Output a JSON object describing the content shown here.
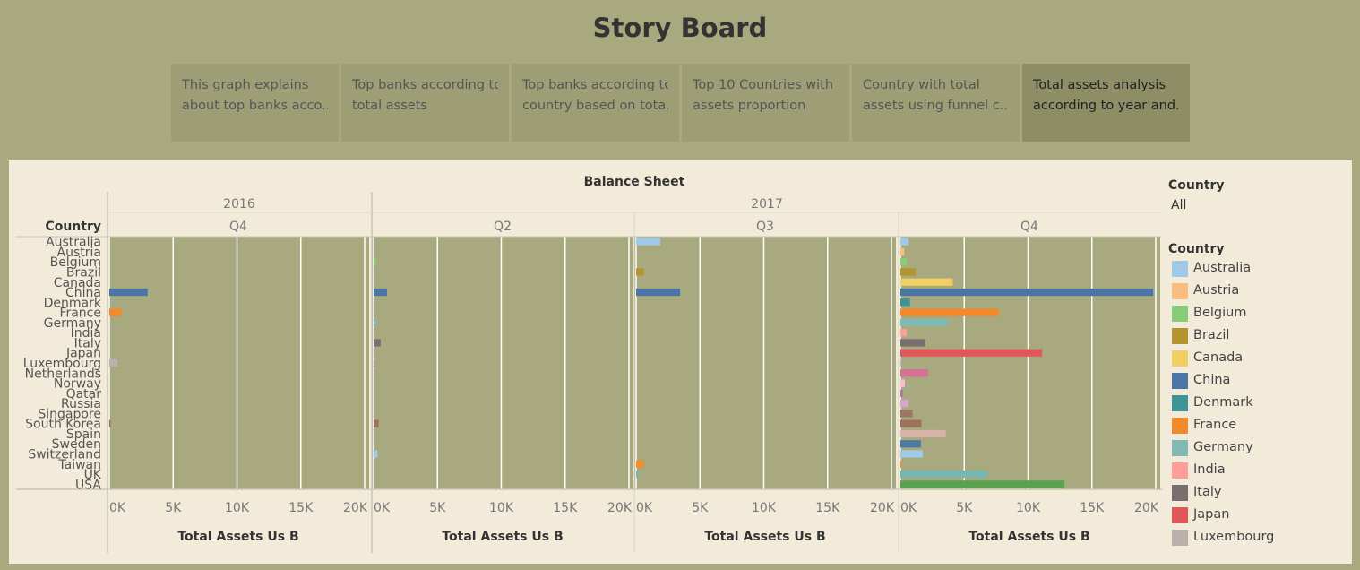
{
  "page": {
    "title": "Story Board"
  },
  "tabs": [
    {
      "line1": "This graph explains",
      "line2": "about top banks acco..",
      "active": false
    },
    {
      "line1": "Top banks according to",
      "line2": "total assets",
      "active": false
    },
    {
      "line1": "Top banks according to",
      "line2": "country based on tota..",
      "active": false
    },
    {
      "line1": "Top 10 Countries with",
      "line2": "assets proportion",
      "active": false
    },
    {
      "line1": "Country with total",
      "line2": "assets using funnel c..",
      "active": false
    },
    {
      "line1": "Total assets analysis",
      "line2": "according to year and..",
      "active": true
    }
  ],
  "filter": {
    "title": "Country",
    "value": "All"
  },
  "legend": {
    "title": "Country",
    "items": [
      {
        "label": "Australia",
        "color": "#9ec9e8"
      },
      {
        "label": "Austria",
        "color": "#f9bd7e"
      },
      {
        "label": "Belgium",
        "color": "#88cc77"
      },
      {
        "label": "Brazil",
        "color": "#b59430"
      },
      {
        "label": "Canada",
        "color": "#f1cf63"
      },
      {
        "label": "China",
        "color": "#4a75a6"
      },
      {
        "label": "Denmark",
        "color": "#3e9494"
      },
      {
        "label": "France",
        "color": "#f2892b"
      },
      {
        "label": "Germany",
        "color": "#7fbab5"
      },
      {
        "label": "India",
        "color": "#fd9e98"
      },
      {
        "label": "Italy",
        "color": "#7a6f6e"
      },
      {
        "label": "Japan",
        "color": "#e15759"
      },
      {
        "label": "Luxembourg",
        "color": "#bab0ac"
      }
    ]
  },
  "chart_data": {
    "type": "bar",
    "orientation": "horizontal",
    "title": "Balance Sheet",
    "row_header": "Country",
    "xlabel": "Total Assets Us B",
    "xlim": [
      0,
      20000
    ],
    "xticks": [
      "0K",
      "5K",
      "10K",
      "15K",
      "20K"
    ],
    "grid": true,
    "legend_position": "right",
    "plot_bg": "#a8a97f",
    "columns": [
      {
        "year": "2016",
        "quarter": "Q4"
      },
      {
        "year": "2017",
        "quarter": "Q2"
      },
      {
        "year": "2017",
        "quarter": "Q3"
      },
      {
        "year": "2017",
        "quarter": "Q4"
      }
    ],
    "categories": [
      "Australia",
      "Austria",
      "Belgium",
      "Brazil",
      "Canada",
      "China",
      "Denmark",
      "France",
      "Germany",
      "India",
      "Italy",
      "Japan",
      "Luxembourg",
      "Netherlands",
      "Norway",
      "Qatar",
      "Russia",
      "Singapore",
      "South Korea",
      "Spain",
      "Sweden",
      "Switzerland",
      "Taiwan",
      "UK",
      "USA"
    ],
    "colors": {
      "Australia": "#9ec9e8",
      "Austria": "#f9bd7e",
      "Belgium": "#88cc77",
      "Brazil": "#b59430",
      "Canada": "#f1cf63",
      "China": "#4a75a6",
      "Denmark": "#3e9494",
      "France": "#f2892b",
      "Germany": "#7fbab5",
      "India": "#fd9e98",
      "Italy": "#7a6f6e",
      "Japan": "#e15759",
      "Luxembourg": "#bab0ac",
      "Netherlands": "#d37295",
      "Norway": "#fabfd2",
      "Qatar": "#b07aa1",
      "Russia": "#d4a6c8",
      "Singapore": "#9d7660",
      "South Korea": "#a0705f",
      "Spain": "#d7b5a6",
      "Sweden": "#4e79a7",
      "Switzerland": "#a0cbe8",
      "Taiwan": "#f28e2b",
      "UK": "#76b7b2",
      "USA": "#59a14f"
    },
    "series": [
      {
        "column": 0,
        "values": {
          "China": 3000,
          "France": 950,
          "Luxembourg": 650,
          "South Korea": 100
        }
      },
      {
        "column": 1,
        "values": {
          "Belgium": 200,
          "China": 1050,
          "Germany": 250,
          "Italy": 550,
          "Luxembourg": 80,
          "South Korea": 400,
          "Switzerland": 300
        }
      },
      {
        "column": 2,
        "values": {
          "Australia": 1900,
          "Brazil": 600,
          "China": 3450,
          "Taiwan": 600,
          "UK": 150
        }
      },
      {
        "column": 3,
        "values": {
          "Australia": 650,
          "Austria": 300,
          "Belgium": 500,
          "Brazil": 1200,
          "Canada": 4100,
          "China": 19800,
          "Denmark": 750,
          "France": 7700,
          "Germany": 3700,
          "India": 500,
          "Italy": 1950,
          "Japan": 11100,
          "Luxembourg": 60,
          "Netherlands": 2200,
          "Norway": 350,
          "Qatar": 200,
          "Russia": 650,
          "Singapore": 950,
          "South Korea": 1650,
          "Spain": 3550,
          "Sweden": 1600,
          "Switzerland": 1750,
          "Taiwan": 50,
          "UK": 6800,
          "USA": 12850
        }
      }
    ]
  }
}
